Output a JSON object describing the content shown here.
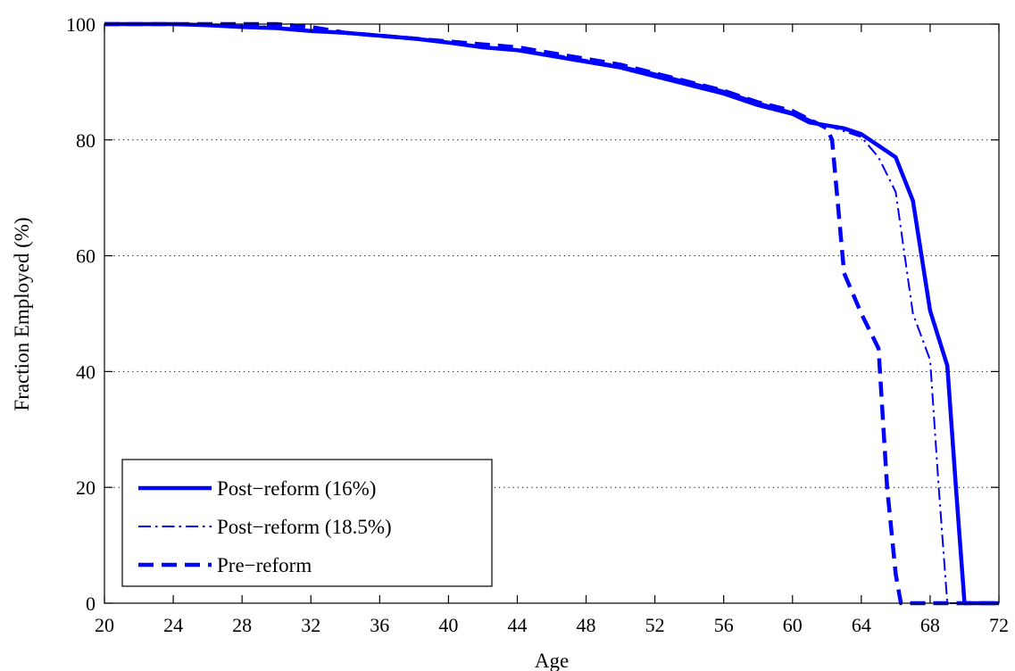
{
  "chart_data": {
    "type": "line",
    "title": "",
    "xlabel": "Age",
    "ylabel": "Fraction Employed (%)",
    "xlim": [
      20,
      72
    ],
    "ylim": [
      0,
      100
    ],
    "x_ticks": [
      20,
      24,
      28,
      32,
      36,
      40,
      44,
      48,
      52,
      56,
      60,
      64,
      68,
      72
    ],
    "y_ticks": [
      0,
      20,
      40,
      60,
      80,
      100
    ],
    "grid": "horizontal dotted",
    "legend_position": "bottom-left",
    "series_color": "#0000ff",
    "series": [
      {
        "name": "Post−reform (16%)",
        "style": "solid",
        "x": [
          20,
          24,
          26,
          28,
          30,
          32,
          34,
          36,
          38,
          40,
          42,
          44,
          46,
          48,
          50,
          52,
          54,
          56,
          58,
          60,
          61,
          62,
          63,
          64,
          65,
          66,
          67,
          68,
          69,
          69.5,
          70,
          72
        ],
        "y": [
          100,
          100,
          99.8,
          99.5,
          99.3,
          98.8,
          98.5,
          98,
          97.5,
          96.8,
          96,
          95.5,
          94.5,
          93.5,
          92.5,
          91,
          89.5,
          88,
          86,
          84.5,
          83,
          82.5,
          82,
          81,
          79,
          77,
          69.5,
          50.5,
          41,
          20,
          0,
          0
        ]
      },
      {
        "name": "Post−reform (18.5%)",
        "style": "dashdot",
        "x": [
          20,
          24,
          26,
          28,
          30,
          32,
          34,
          36,
          38,
          40,
          42,
          44,
          46,
          48,
          50,
          52,
          54,
          56,
          58,
          60,
          61,
          62,
          63,
          64,
          65,
          66,
          67,
          68,
          68.5,
          69,
          72
        ],
        "y": [
          100,
          100,
          100,
          99.8,
          99.5,
          99,
          98.5,
          98,
          97.5,
          96.8,
          96.2,
          95.5,
          94.8,
          93.8,
          92.8,
          91.5,
          90,
          88.5,
          86.5,
          84.8,
          83.5,
          82.5,
          81.5,
          80.5,
          77,
          71,
          50,
          42,
          20,
          0,
          0
        ]
      },
      {
        "name": "Pre−reform",
        "style": "dashed",
        "x": [
          20,
          24,
          26,
          28,
          30,
          32,
          34,
          36,
          38,
          40,
          42,
          44,
          46,
          48,
          50,
          52,
          54,
          56,
          58,
          60,
          61,
          62,
          62.3,
          63,
          64,
          65,
          65.5,
          66,
          66.3,
          72
        ],
        "y": [
          100,
          100,
          100,
          100,
          100,
          99.5,
          98.5,
          98,
          97.5,
          97,
          96.5,
          96,
          95,
          94,
          93,
          91.5,
          90,
          88.5,
          86.5,
          85,
          83.5,
          82,
          80,
          57,
          50,
          44,
          20,
          5,
          0,
          0
        ]
      }
    ]
  }
}
